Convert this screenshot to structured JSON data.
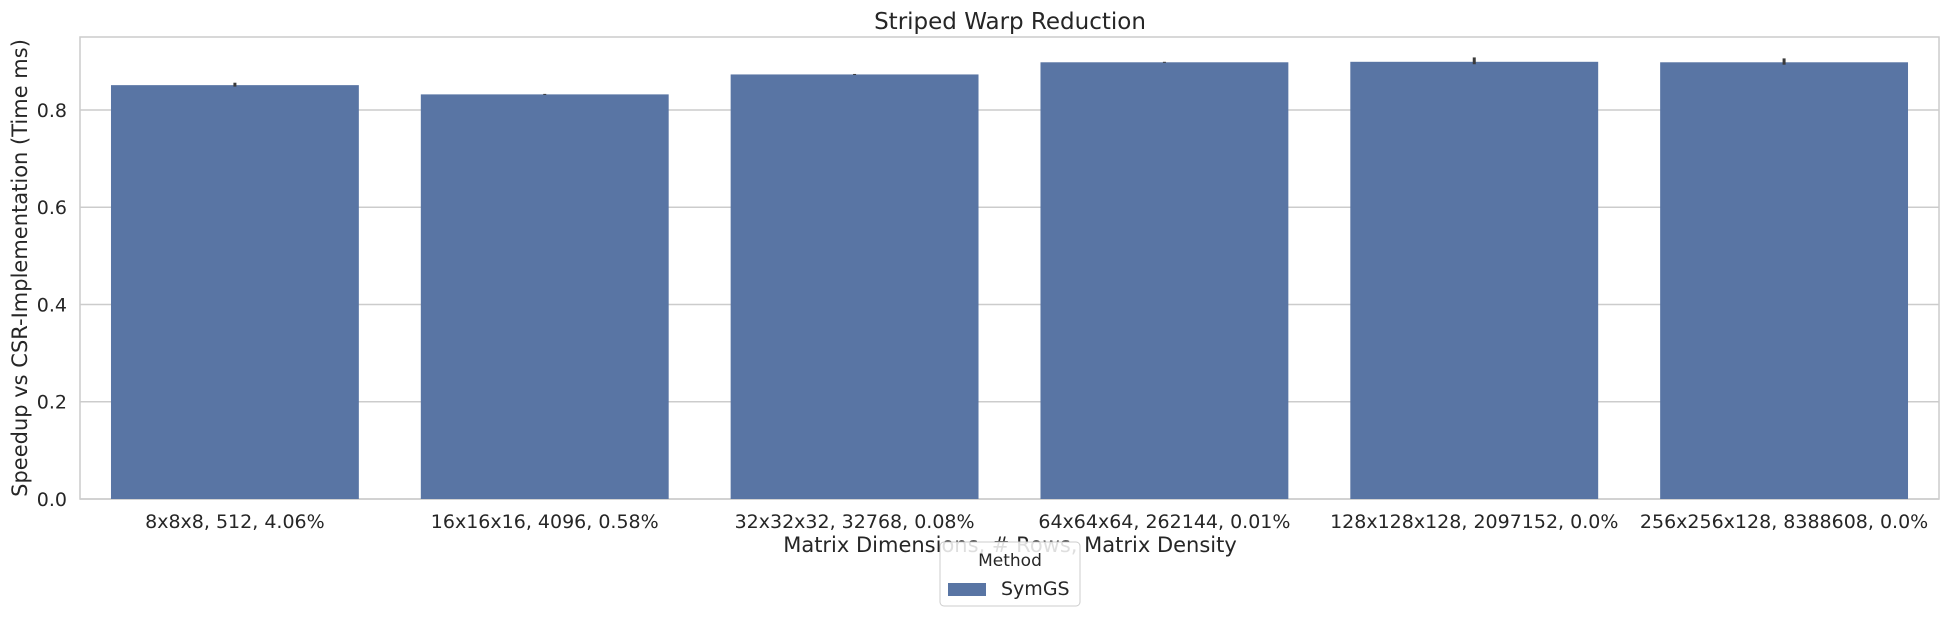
{
  "chart_data": {
    "type": "bar",
    "title": "Striped Warp Reduction",
    "xlabel": "Matrix Dimensions, # Rows, Matrix Density",
    "ylabel": "Speedup vs CSR-Implementation (Time ms)",
    "ylim": [
      0,
      0.95
    ],
    "yticks": [
      "0.0",
      "0.2",
      "0.4",
      "0.6",
      "0.8"
    ],
    "grid": true,
    "legend_position": "bottom-center",
    "legend_title": "Method",
    "categories": [
      "8x8x8, 512, 4.06%",
      "16x16x16, 4096, 0.58%",
      "32x32x32, 32768, 0.08%",
      "64x64x64, 262144, 0.01%",
      "128x128x128, 2097152, 0.0%",
      "256x256x128, 8388608, 0.0%"
    ],
    "series": [
      {
        "name": "SymGS",
        "color": "#5975a4",
        "values": [
          0.851,
          0.832,
          0.873,
          0.898,
          0.899,
          0.898
        ],
        "error_high": [
          0.856,
          0.833,
          0.874,
          0.899,
          0.908,
          0.906
        ],
        "error_low": [
          0.848,
          0.831,
          0.872,
          0.897,
          0.894,
          0.893
        ]
      }
    ]
  }
}
